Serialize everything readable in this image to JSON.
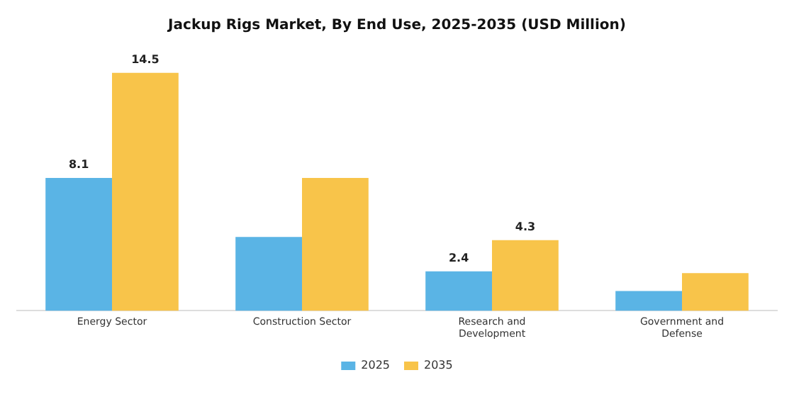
{
  "chart_data": {
    "type": "bar",
    "title": "Jackup Rigs Market, By End Use, 2025-2035 (USD Million)",
    "categories": [
      "Energy Sector",
      "Construction Sector",
      "Research and\nDevelopment",
      "Government and\nDefense"
    ],
    "series": [
      {
        "name": "2025",
        "color": "#5ab4e5",
        "values": [
          8.1,
          4.5,
          2.4,
          1.2
        ],
        "value_labels": [
          "8.1",
          null,
          "2.4",
          null
        ]
      },
      {
        "name": "2035",
        "color": "#f8c44a",
        "values": [
          14.5,
          8.1,
          4.3,
          2.3
        ],
        "value_labels": [
          "14.5",
          null,
          "4.3",
          null
        ]
      }
    ],
    "legend": "bottom",
    "grid": false
  }
}
